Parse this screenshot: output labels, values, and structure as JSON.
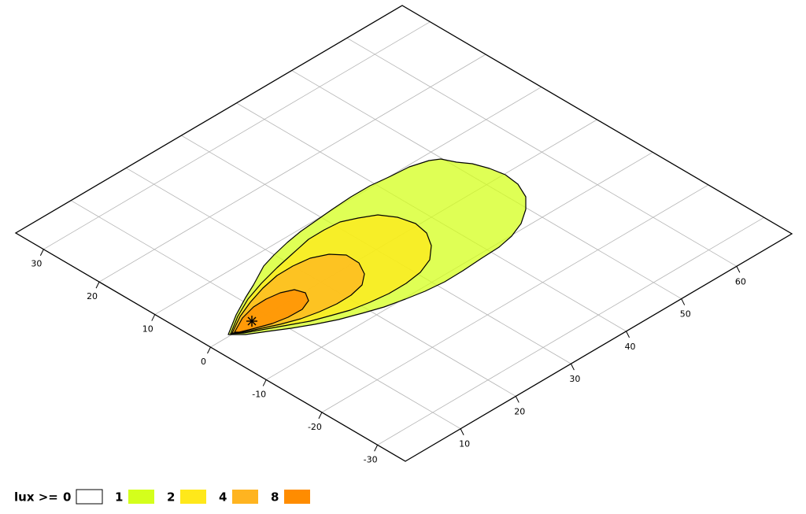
{
  "chart_data": {
    "type": "contour",
    "xlim": [
      0,
      70
    ],
    "xticks": [
      10,
      20,
      30,
      40,
      50,
      60
    ],
    "ylim": [
      -35,
      35
    ],
    "yticks": [
      30,
      20,
      10,
      0,
      -10,
      -20,
      -30
    ],
    "grid": true,
    "legend_title": "lux >=",
    "levels": [
      0,
      1,
      2,
      4,
      8
    ],
    "colors": [
      "#ffffff",
      "#d4ff1c",
      "#ffe81a",
      "#ffb420",
      "#ff8c00"
    ]
  }
}
